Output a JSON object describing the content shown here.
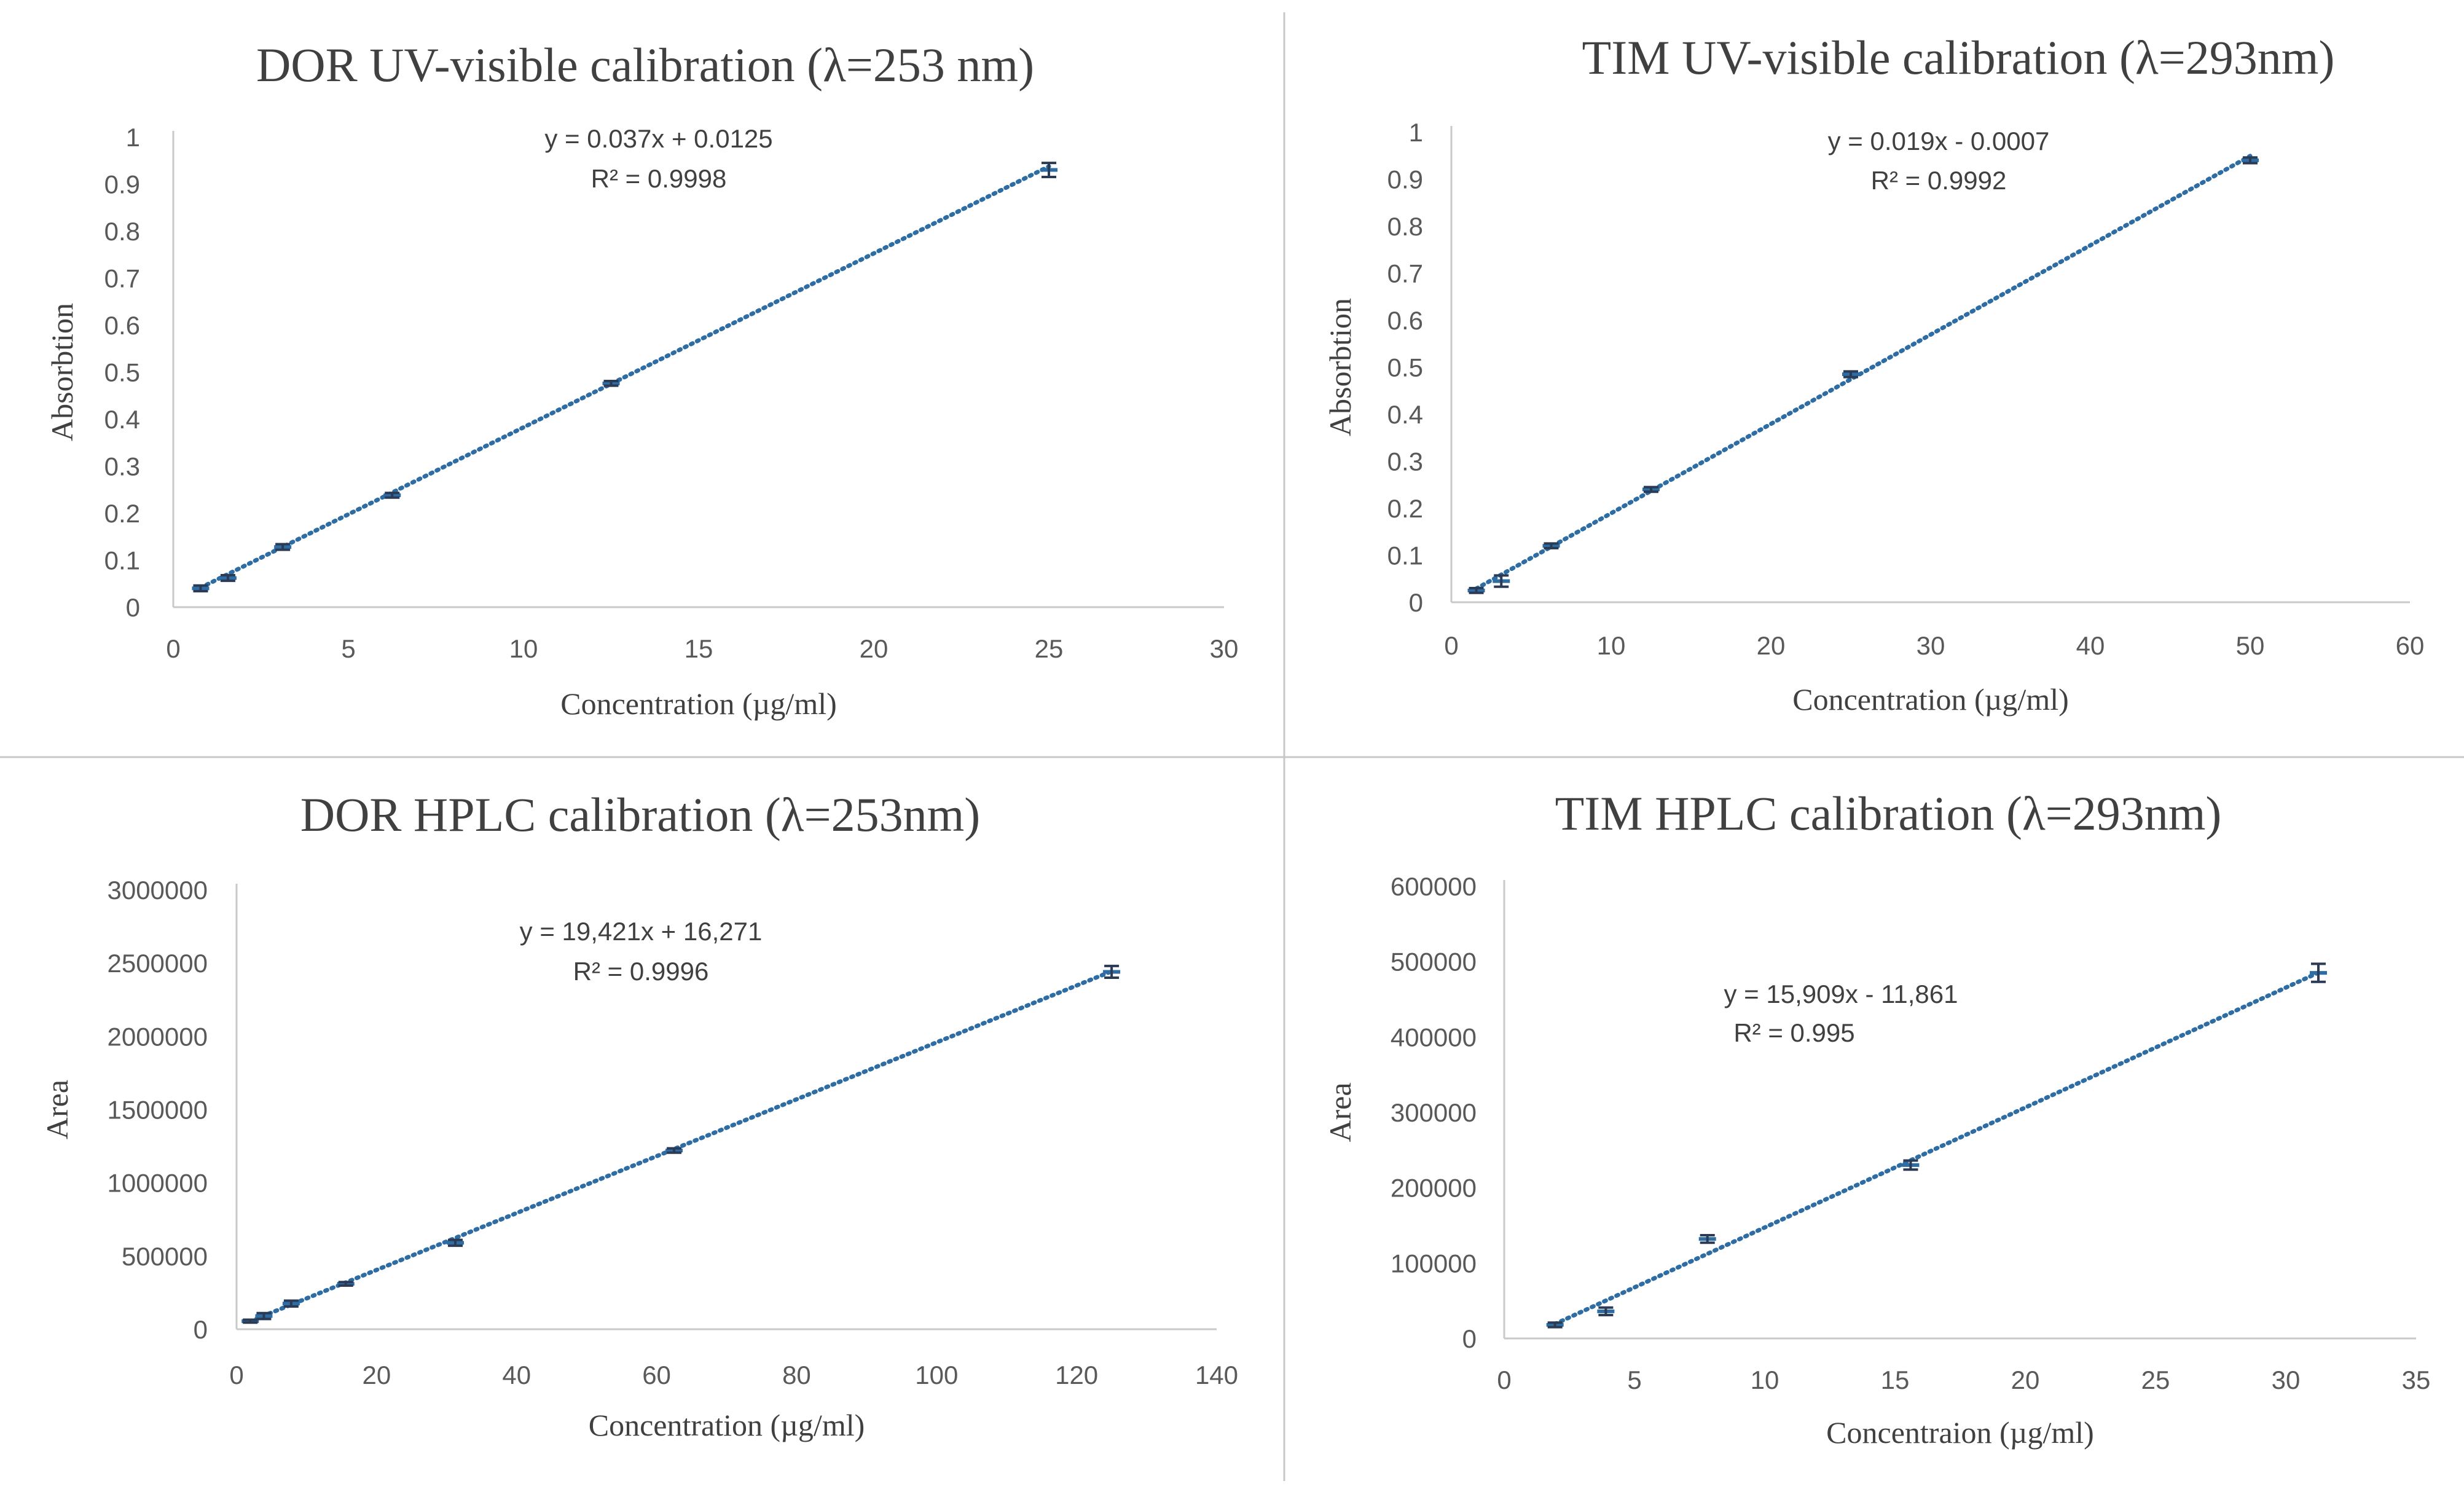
{
  "figure": {
    "panels": [
      {
        "title": "DOR UV-visible calibration (λ=253 nm)",
        "xlabel": "Concentration (µg/ml)",
        "ylabel": "Absorbtion",
        "equation": "y = 0.037x + 0.0125",
        "r2": "R² = 0.9998",
        "xticks": [
          "0",
          "5",
          "10",
          "15",
          "20",
          "25",
          "30"
        ],
        "yticks": [
          "0",
          "0.1",
          "0.2",
          "0.3",
          "0.4",
          "0.5",
          "0.6",
          "0.7",
          "0.8",
          "0.9",
          "1"
        ]
      },
      {
        "title": "TIM UV-visible calibration (λ=293nm)",
        "xlabel": "Concentration (µg/ml)",
        "ylabel": "Absorbtion",
        "equation": "y = 0.019x - 0.0007",
        "r2": "R² = 0.9992",
        "xticks": [
          "0",
          "10",
          "20",
          "30",
          "40",
          "50",
          "60"
        ],
        "yticks": [
          "0",
          "0.1",
          "0.2",
          "0.3",
          "0.4",
          "0.5",
          "0.6",
          "0.7",
          "0.8",
          "0.9",
          "1"
        ]
      },
      {
        "title": "DOR HPLC calibration  (λ=253nm)",
        "xlabel": "Concentration (µg/ml)",
        "ylabel": "Area",
        "equation": "y = 19,421x + 16,271",
        "r2": "R² = 0.9996",
        "xticks": [
          "0",
          "20",
          "40",
          "60",
          "80",
          "100",
          "120",
          "140"
        ],
        "yticks": [
          "0",
          "500000",
          "1000000",
          "1500000",
          "2000000",
          "2500000",
          "3000000"
        ]
      },
      {
        "title": "TIM HPLC calibration (λ=293nm)",
        "xlabel": "Concentraion (µg/ml)",
        "ylabel": "Area",
        "equation": "y = 15,909x - 11,861",
        "r2": "R² = 0.995",
        "xticks": [
          "0",
          "5",
          "10",
          "15",
          "20",
          "25",
          "30",
          "35"
        ],
        "yticks": [
          "0",
          "100000",
          "200000",
          "300000",
          "400000",
          "500000",
          "600000"
        ]
      }
    ]
  },
  "chart_data": [
    {
      "type": "scatter",
      "title": "DOR UV-visible calibration (λ=253 nm)",
      "xlabel": "Concentration (µg/ml)",
      "ylabel": "Absorbtion",
      "xlim": [
        0,
        30
      ],
      "ylim": [
        0,
        1
      ],
      "x": [
        0.78,
        1.56,
        3.125,
        6.25,
        12.5,
        25
      ],
      "y": [
        0.04,
        0.062,
        0.128,
        0.238,
        0.476,
        0.93
      ],
      "error": [
        0.006,
        0.006,
        0.006,
        0.005,
        0.005,
        0.015
      ],
      "trendline": {
        "slope": 0.037,
        "intercept": 0.0125,
        "r2": 0.9998
      }
    },
    {
      "type": "scatter",
      "title": "TIM UV-visible calibration (λ=293nm)",
      "xlabel": "Concentration (µg/ml)",
      "ylabel": "Absorbtion",
      "xlim": [
        0,
        60
      ],
      "ylim": [
        0,
        1
      ],
      "x": [
        1.56,
        3.125,
        6.25,
        12.5,
        25,
        50
      ],
      "y": [
        0.025,
        0.045,
        0.12,
        0.24,
        0.485,
        0.94
      ],
      "error": [
        0.005,
        0.012,
        0.005,
        0.005,
        0.006,
        0.006
      ],
      "trendline": {
        "slope": 0.019,
        "intercept": -0.0007,
        "r2": 0.9992
      }
    },
    {
      "type": "scatter",
      "title": "DOR HPLC calibration  (λ=253nm)",
      "xlabel": "Concentration (µg/ml)",
      "ylabel": "Area",
      "xlim": [
        0,
        140
      ],
      "ylim": [
        0,
        3000000
      ],
      "x": [
        1.95,
        3.9,
        7.8,
        15.6,
        31.25,
        62.5,
        125
      ],
      "y": [
        55000,
        90000,
        175000,
        310000,
        590000,
        1220000,
        2440000
      ],
      "error": [
        10000,
        20000,
        20000,
        12000,
        20000,
        15000,
        40000
      ],
      "trendline": {
        "slope": 19421,
        "intercept": 16271,
        "r2": 0.9996
      }
    },
    {
      "type": "scatter",
      "title": "TIM HPLC calibration (λ=293nm)",
      "xlabel": "Concentraion (µg/ml)",
      "ylabel": "Area",
      "xlim": [
        0,
        35
      ],
      "ylim": [
        0,
        600000
      ],
      "x": [
        1.95,
        3.9,
        7.8,
        15.6,
        31.25
      ],
      "y": [
        18000,
        36000,
        132000,
        230000,
        485000
      ],
      "error": [
        3000,
        5000,
        5000,
        6000,
        12000
      ],
      "trendline": {
        "slope": 15909,
        "intercept": -11861,
        "r2": 0.995
      }
    }
  ]
}
